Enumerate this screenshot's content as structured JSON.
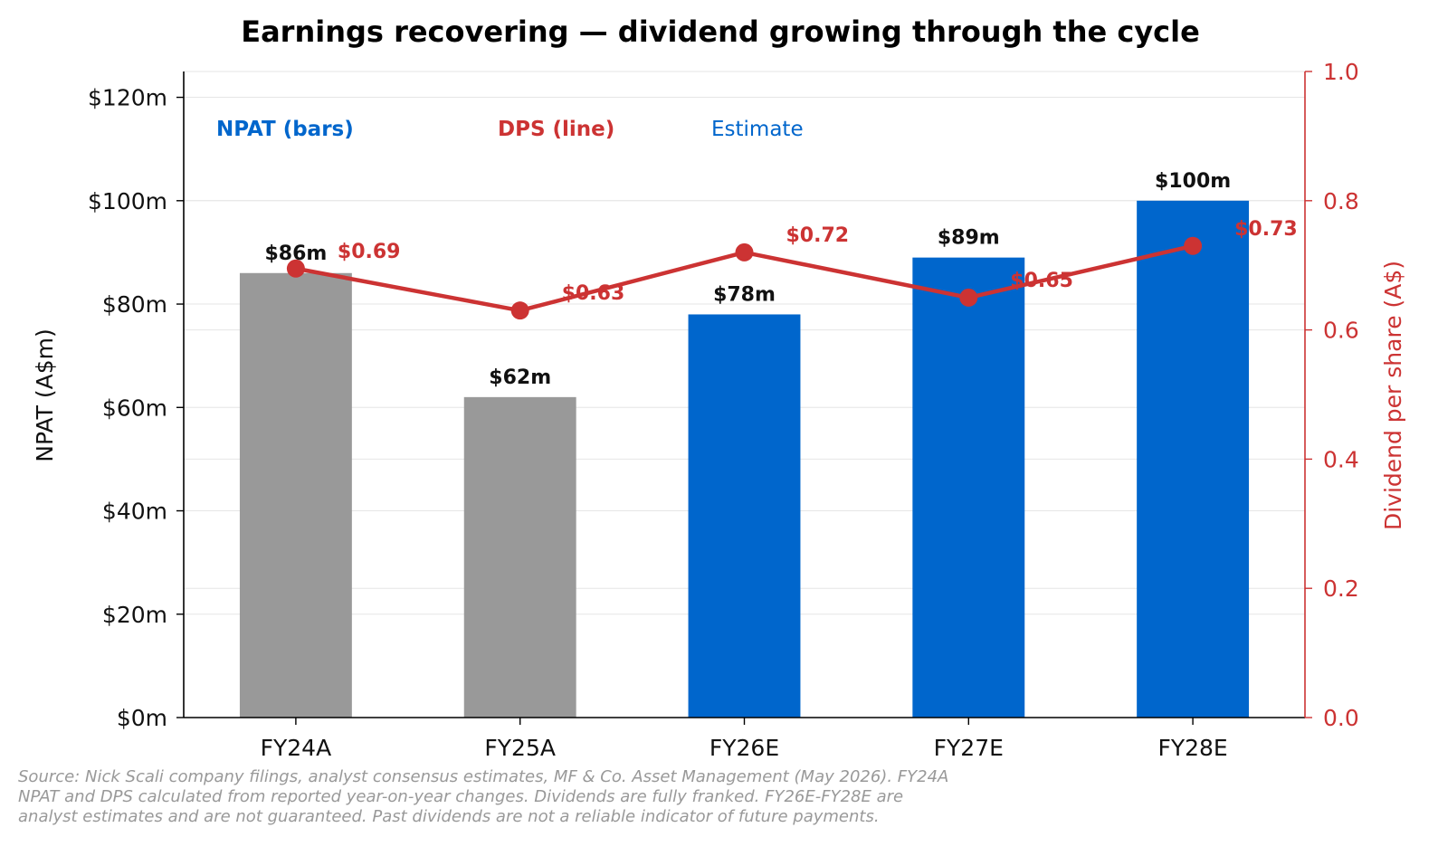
{
  "chart_data": {
    "type": "bar",
    "title": "Earnings recovering — dividend growing through the cycle",
    "categories": [
      "FY24A",
      "FY25A",
      "FY26E",
      "FY27E",
      "FY28E"
    ],
    "ylabel": "NPAT (A$m)",
    "y2label": "Dividend per share (A$)",
    "ylim": [
      0,
      125
    ],
    "y2lim": [
      0,
      1.0
    ],
    "yticks": [
      0,
      20,
      40,
      60,
      80,
      100,
      120
    ],
    "ytick_labels": [
      "$0m",
      "$20m",
      "$40m",
      "$60m",
      "$80m",
      "$100m",
      "$120m"
    ],
    "y2ticks": [
      0.0,
      0.2,
      0.4,
      0.6,
      0.8,
      1.0
    ],
    "y2tick_labels": [
      "0.0",
      "0.2",
      "0.4",
      "0.6",
      "0.8",
      "1.0"
    ],
    "grid": true,
    "series": [
      {
        "name": "NPAT (bars)",
        "kind": "bar",
        "axis": "left",
        "values": [
          86,
          62,
          78,
          89,
          100
        ],
        "labels": [
          "$86m",
          "$62m",
          "$78m",
          "$89m",
          "$100m"
        ],
        "colors": [
          "#999999",
          "#999999",
          "#0066cc",
          "#0066cc",
          "#0066cc"
        ]
      },
      {
        "name": "DPS (line)",
        "kind": "line",
        "axis": "right",
        "values": [
          0.695,
          0.63,
          0.72,
          0.65,
          0.73
        ],
        "labels": [
          "$0.69",
          "$0.63",
          "$0.72",
          "$0.65",
          "$0.73"
        ],
        "color": "#cc3333"
      }
    ],
    "legend": {
      "placement": "top-left",
      "items": [
        {
          "text": "NPAT (bars)",
          "color": "#0066cc",
          "bold": true
        },
        {
          "text": "DPS (line)",
          "color": "#cc3333",
          "bold": true
        },
        {
          "text": "Estimate",
          "color": "#0066cc",
          "bold": false
        }
      ]
    },
    "source_lines": [
      "Source: Nick Scali company filings, analyst consensus estimates, MF & Co. Asset Management (May 2026). FY24A",
      "NPAT and DPS calculated from reported year-on-year changes. Dividends are fully franked. FY26E-FY28E are",
      "analyst estimates and are not guaranteed. Past dividends are not a reliable indicator of future payments."
    ]
  }
}
